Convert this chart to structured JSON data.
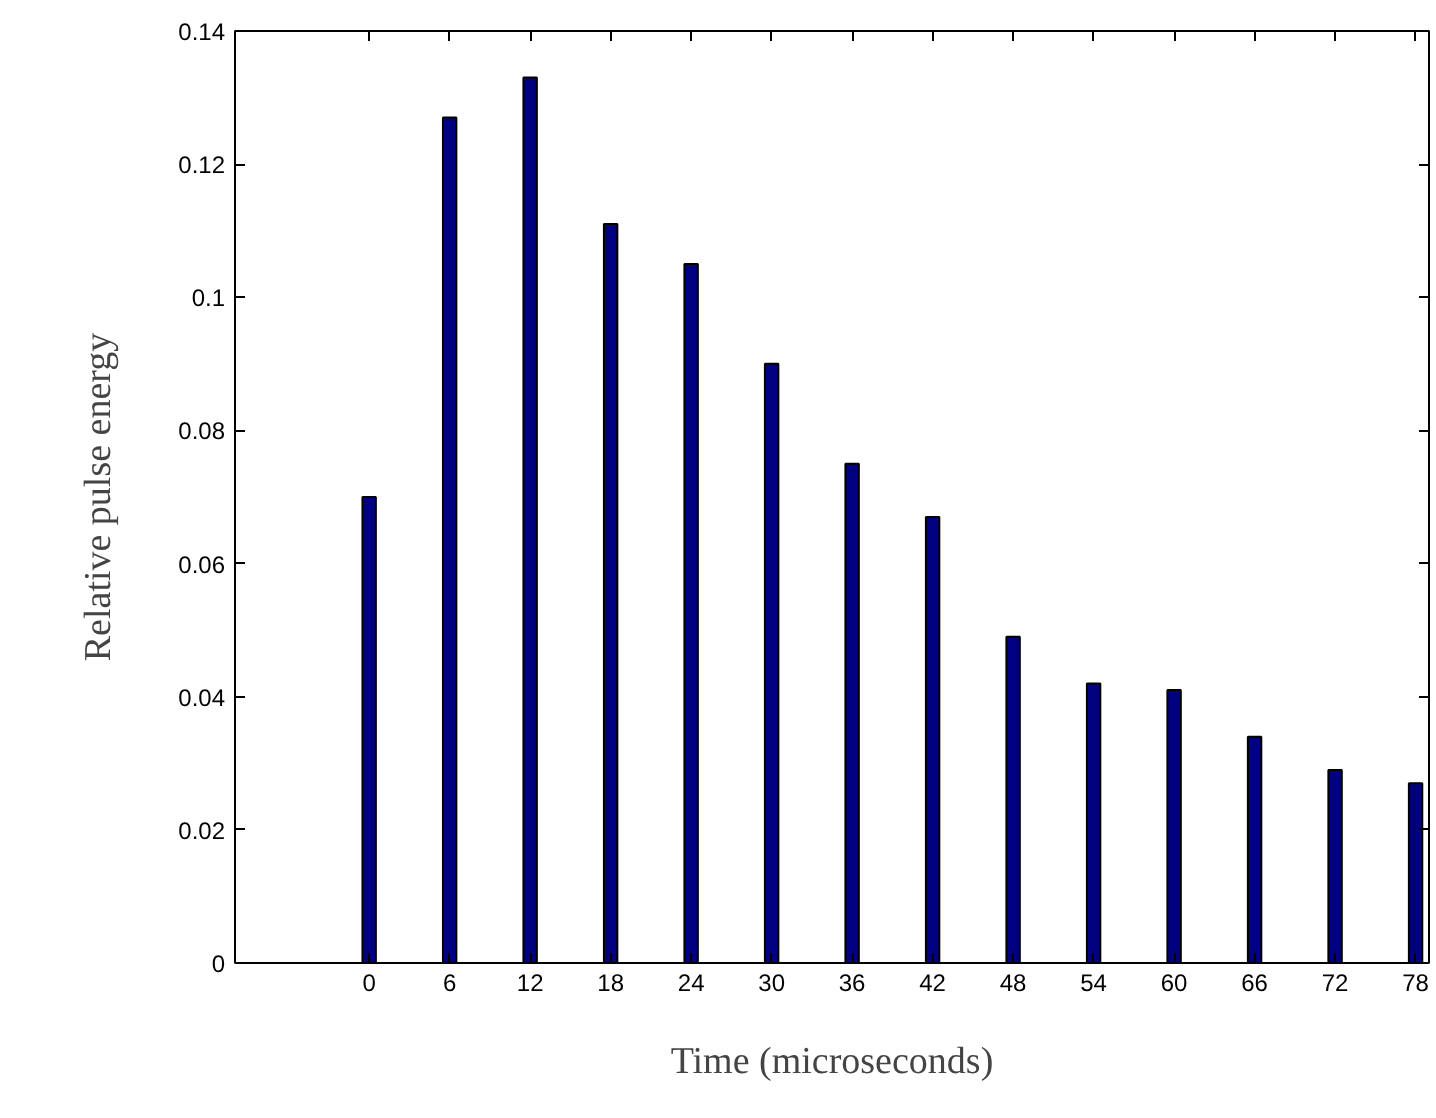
{
  "chart_data": {
    "type": "bar",
    "xlabel": "Time (microseconds)",
    "ylabel": "Relative pulse energy",
    "x": [
      0,
      6,
      12,
      18,
      24,
      30,
      36,
      42,
      48,
      54,
      60,
      66,
      72,
      78
    ],
    "values": [
      0.07,
      0.127,
      0.133,
      0.111,
      0.105,
      0.09,
      0.075,
      0.067,
      0.049,
      0.042,
      0.041,
      0.034,
      0.029,
      0.027
    ],
    "color": "#000080",
    "xlim": [
      -10,
      79
    ],
    "xticks": [
      0,
      6,
      12,
      18,
      24,
      30,
      36,
      42,
      48,
      54,
      60,
      66,
      72,
      78
    ],
    "ylim": [
      0,
      0.14
    ],
    "yticks": [
      0,
      0.02,
      0.04,
      0.06,
      0.08,
      0.1,
      0.12,
      0.14
    ],
    "grid": false
  }
}
